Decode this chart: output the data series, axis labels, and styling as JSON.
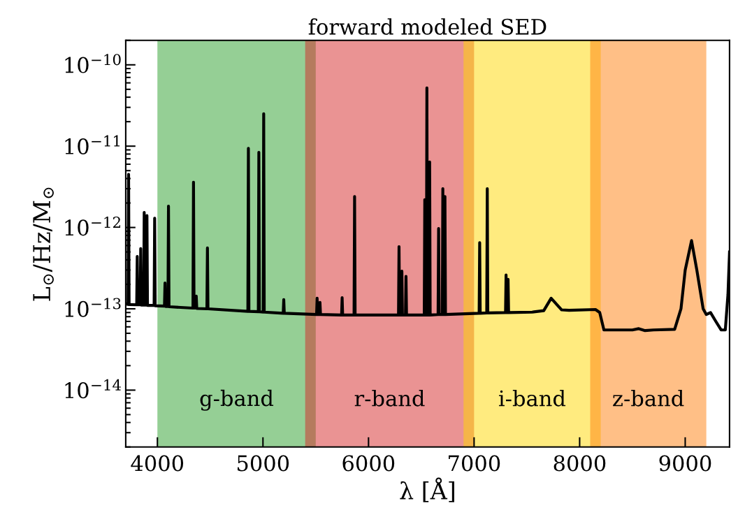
{
  "chart_data": {
    "type": "line",
    "title": "forward modeled SED",
    "xlabel": "λ [Å]",
    "ylabel": "L$_{⊙}$/Hz/M$_{⊙}$",
    "x": [
      3700,
      3722,
      3727,
      3732,
      3804,
      3809,
      3814,
      3837,
      3842,
      3847,
      3870,
      3875,
      3880,
      3896,
      3901,
      3906,
      3969,
      3974,
      3979,
      4067,
      4072,
      4077,
      4100,
      4105,
      4110,
      4337,
      4342,
      4347,
      4363,
      4368,
      4373,
      4469,
      4474,
      4479,
      4857,
      4862,
      4867,
      4956,
      4961,
      4966,
      5002,
      5007,
      5012,
      5192,
      5197,
      5202,
      5508,
      5513,
      5518,
      5535,
      5540,
      5545,
      5745,
      5750,
      5755,
      5863,
      5868,
      5873,
      6284,
      6289,
      6294,
      6311,
      6316,
      6321,
      6350,
      6355,
      6360,
      6528,
      6533,
      6538,
      6548,
      6553,
      6558,
      6574,
      6579,
      6584,
      6659,
      6664,
      6669,
      6699,
      6704,
      6709,
      6719,
      6724,
      6729,
      7048,
      7053,
      7058,
      7120,
      7125,
      7130,
      7298,
      7303,
      7308,
      7317,
      7322,
      7327,
      7550,
      7660,
      7730,
      7830,
      7900,
      8150,
      8190,
      8230,
      8500,
      8560,
      8620,
      8700,
      8900,
      8960,
      9000,
      9060,
      9110,
      9170,
      9200,
      9240,
      9290,
      9340,
      9380,
      9405,
      9420
    ],
    "series": [
      {
        "color": "#000000",
        "values": [
          1.15e-13,
          1.13e-13,
          4.5e-12,
          1.13e-13,
          1.12e-13,
          4.4e-13,
          1.12e-13,
          1.12e-13,
          5.5e-13,
          1.11e-13,
          1.11e-13,
          1.53e-12,
          1.11e-13,
          1.11e-13,
          1.4e-12,
          1.1e-13,
          1.1e-13,
          1.3e-12,
          1.09e-13,
          1.08e-13,
          2.08e-13,
          1.07e-13,
          1.07e-13,
          1.83e-12,
          1.06e-13,
          1.02e-13,
          3.6e-12,
          1.02e-13,
          1.02e-13,
          1.43e-13,
          1.01e-13,
          1e-13,
          5.6e-13,
          1e-13,
          9.3e-14,
          9.4e-12,
          9.3e-14,
          9.2e-14,
          8.4e-12,
          9.2e-14,
          9.1e-14,
          2.5e-11,
          9.1e-14,
          8.8e-14,
          1.3e-13,
          8.8e-14,
          8.5e-14,
          1.35e-13,
          8.5e-14,
          8.5e-14,
          1.2e-13,
          8.5e-14,
          8.4e-14,
          1.37e-13,
          8.4e-14,
          8.4e-14,
          2.4e-12,
          8.4e-14,
          8.4e-14,
          5.8e-13,
          8.4e-14,
          8.4e-14,
          2.9e-13,
          8.4e-14,
          8.4e-14,
          2.5e-13,
          8.4e-14,
          8.4e-14,
          2.2e-12,
          8.4e-14,
          8.4e-14,
          5.2e-11,
          8.4e-14,
          8.4e-14,
          6.4e-12,
          8.4e-14,
          8.5e-14,
          9.7e-13,
          8.5e-14,
          8.5e-14,
          3e-12,
          8.5e-14,
          8.5e-14,
          2.4e-12,
          8.5e-14,
          8.8e-14,
          6.5e-13,
          8.8e-14,
          8.9e-14,
          3e-12,
          8.9e-14,
          9e-14,
          2.6e-13,
          9e-14,
          9e-14,
          2.3e-13,
          9e-14,
          9.1e-14,
          9.5e-14,
          1.35e-13,
          9.7e-14,
          9.6e-14,
          9.8e-14,
          9e-14,
          5.5e-14,
          5.5e-14,
          5.7e-14,
          5.4e-14,
          5.5e-14,
          5.6e-14,
          1e-13,
          3e-13,
          6.9e-13,
          3e-13,
          1e-13,
          8.5e-14,
          9e-14,
          7e-14,
          5.5e-14,
          5.5e-14,
          1.5e-13,
          5e-13
        ]
      }
    ],
    "log": "y",
    "xlim": [
      3700,
      9420
    ],
    "ylim": [
      2e-15,
      2e-10
    ],
    "xticks": [
      4000,
      5000,
      6000,
      7000,
      8000,
      9000
    ],
    "yticks": [
      {
        "value": 1e-10,
        "label": "10$^{−10}$"
      },
      {
        "value": 1e-11,
        "label": "10$^{−11}$"
      },
      {
        "value": 1e-12,
        "label": "10$^{−12}$"
      },
      {
        "value": 1e-13,
        "label": "10$^{−13}$"
      },
      {
        "value": 1e-14,
        "label": "10$^{−14}$"
      }
    ],
    "bands": [
      {
        "axis": "x",
        "from": 4000,
        "to": 5500,
        "label": "g-band",
        "color": "#2ca02c"
      },
      {
        "axis": "x",
        "from": 5400,
        "to": 7000,
        "label": "r-band",
        "color": "#d62728"
      },
      {
        "axis": "x",
        "from": 6900,
        "to": 8200,
        "label": "i-band",
        "color": "#ffd700"
      },
      {
        "axis": "x",
        "from": 8100,
        "to": 9200,
        "label": "z-band",
        "color": "#ff7f0e"
      }
    ]
  }
}
